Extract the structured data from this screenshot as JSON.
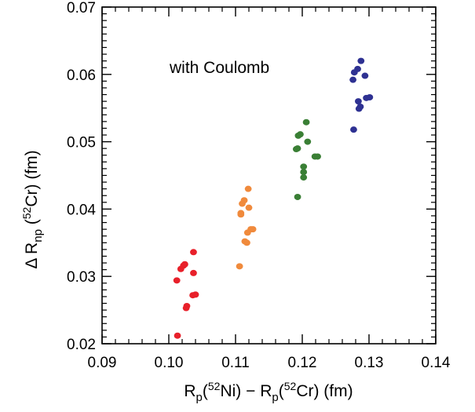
{
  "chart_data": {
    "type": "scatter",
    "title": "",
    "annotation": "with Coulomb",
    "xlabel": {
      "parts": [
        {
          "t": "R"
        },
        {
          "t": "p",
          "sub": true
        },
        {
          "t": "("
        },
        {
          "t": "52",
          "sup": true
        },
        {
          "t": "Ni) − R"
        },
        {
          "t": "p",
          "sub": true
        },
        {
          "t": "("
        },
        {
          "t": "52",
          "sup": true
        },
        {
          "t": "Cr)  (fm)"
        }
      ]
    },
    "ylabel": {
      "parts": [
        {
          "t": "Δ R"
        },
        {
          "t": "np",
          "sub": true
        },
        {
          "t": " ("
        },
        {
          "t": "52",
          "sup": true
        },
        {
          "t": "Cr)  (fm)"
        }
      ]
    },
    "xlim": [
      0.09,
      0.14
    ],
    "ylim": [
      0.02,
      0.07
    ],
    "xticks": [
      "0.09",
      "0.10",
      "0.11",
      "0.12",
      "0.13",
      "0.14"
    ],
    "yticks": [
      "0.02",
      "0.03",
      "0.04",
      "0.05",
      "0.06",
      "0.07"
    ],
    "grid": false,
    "series": [
      {
        "color": "#e8202a",
        "points": [
          [
            0.1013,
            0.0212
          ],
          [
            0.1026,
            0.0253
          ],
          [
            0.1027,
            0.0256
          ],
          [
            0.1036,
            0.0272
          ],
          [
            0.104,
            0.0273
          ],
          [
            0.1012,
            0.0294
          ],
          [
            0.1037,
            0.0305
          ],
          [
            0.1018,
            0.0311
          ],
          [
            0.1022,
            0.0316
          ],
          [
            0.1024,
            0.0318
          ],
          [
            0.1037,
            0.0336
          ]
        ]
      },
      {
        "color": "#f08a3c",
        "points": [
          [
            0.1106,
            0.0315
          ],
          [
            0.1114,
            0.0352
          ],
          [
            0.1117,
            0.035
          ],
          [
            0.1118,
            0.0365
          ],
          [
            0.1123,
            0.037
          ],
          [
            0.1126,
            0.037
          ],
          [
            0.1108,
            0.0392
          ],
          [
            0.1108,
            0.0394
          ],
          [
            0.112,
            0.0402
          ],
          [
            0.111,
            0.0408
          ],
          [
            0.1113,
            0.0413
          ],
          [
            0.1119,
            0.043
          ]
        ]
      },
      {
        "color": "#3a7f35",
        "points": [
          [
            0.1193,
            0.0418
          ],
          [
            0.1202,
            0.0447
          ],
          [
            0.1202,
            0.0455
          ],
          [
            0.1202,
            0.0463
          ],
          [
            0.1191,
            0.0489
          ],
          [
            0.1193,
            0.049
          ],
          [
            0.1219,
            0.0478
          ],
          [
            0.1223,
            0.0478
          ],
          [
            0.1208,
            0.05
          ],
          [
            0.1194,
            0.0509
          ],
          [
            0.1197,
            0.0511
          ],
          [
            0.1206,
            0.0529
          ]
        ]
      },
      {
        "color": "#2e3192",
        "points": [
          [
            0.1277,
            0.0518
          ],
          [
            0.1285,
            0.0549
          ],
          [
            0.1287,
            0.0552
          ],
          [
            0.1284,
            0.056
          ],
          [
            0.1296,
            0.0565
          ],
          [
            0.1301,
            0.0566
          ],
          [
            0.1294,
            0.0598
          ],
          [
            0.1276,
            0.0592
          ],
          [
            0.1278,
            0.0603
          ],
          [
            0.1283,
            0.0608
          ],
          [
            0.1288,
            0.062
          ]
        ]
      }
    ]
  }
}
